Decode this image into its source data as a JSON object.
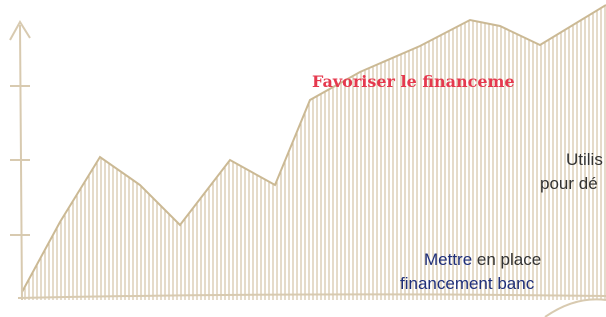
{
  "heading": "Favoriser le financeme",
  "block1": [
    "Utilis",
    "pour dé"
  ],
  "block2": {
    "emphasis": "Mettre",
    "rest": "en place",
    "line2": "financement banc"
  }
}
